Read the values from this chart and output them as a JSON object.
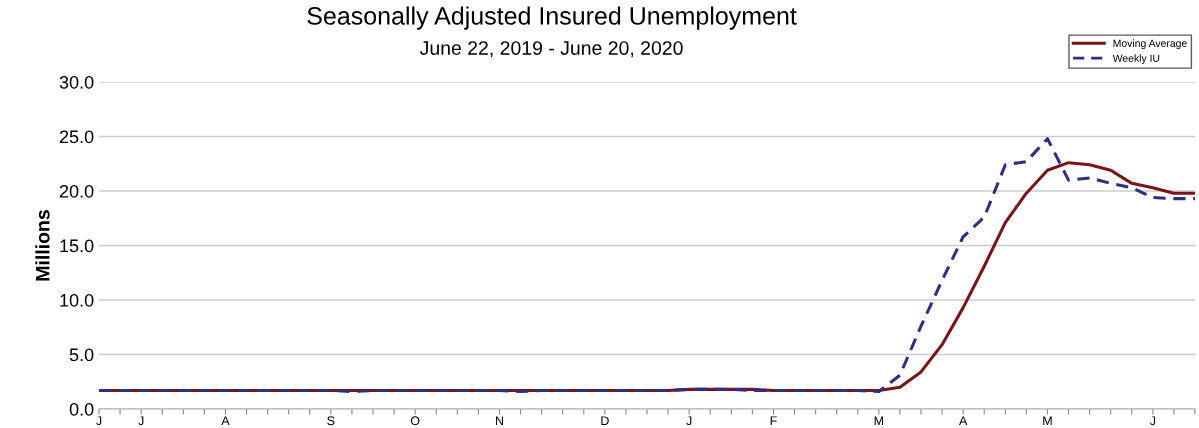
{
  "chart_data": {
    "type": "line",
    "title": "Seasonally Adjusted Insured Unemployment",
    "subtitle": "June 22, 2019 - June 20, 2020",
    "ylabel": "Millions",
    "categories": [
      "J",
      null,
      "J",
      null,
      null,
      null,
      "A",
      null,
      null,
      null,
      null,
      "S",
      null,
      null,
      null,
      "O",
      null,
      null,
      null,
      "N",
      null,
      null,
      null,
      null,
      "D",
      null,
      null,
      null,
      "J",
      null,
      null,
      null,
      "F",
      null,
      null,
      null,
      null,
      "M",
      null,
      null,
      null,
      "A",
      null,
      null,
      null,
      "M",
      null,
      null,
      null,
      null,
      "J",
      null,
      null
    ],
    "series": [
      {
        "name": "Moving Average",
        "color": "#7b1416",
        "line_style": "solid",
        "values": [
          1.7,
          1.7,
          1.7,
          1.7,
          1.7,
          1.7,
          1.7,
          1.7,
          1.7,
          1.7,
          1.7,
          1.7,
          1.7,
          1.7,
          1.7,
          1.7,
          1.7,
          1.7,
          1.7,
          1.7,
          1.7,
          1.7,
          1.7,
          1.7,
          1.7,
          1.7,
          1.7,
          1.7,
          1.8,
          1.8,
          1.8,
          1.8,
          1.7,
          1.7,
          1.7,
          1.7,
          1.7,
          1.7,
          2.0,
          3.4,
          5.9,
          9.3,
          13.1,
          17.1,
          19.8,
          21.9,
          22.6,
          22.4,
          21.9,
          20.7,
          20.3,
          19.8,
          19.8
        ]
      },
      {
        "name": "Weekly IU",
        "color": "#2b2f86",
        "line_style": "dashed",
        "values": [
          1.7,
          1.7,
          1.7,
          1.7,
          1.7,
          1.7,
          1.7,
          1.7,
          1.7,
          1.7,
          1.7,
          1.7,
          1.6,
          1.7,
          1.7,
          1.7,
          1.7,
          1.7,
          1.7,
          1.7,
          1.6,
          1.7,
          1.7,
          1.7,
          1.7,
          1.7,
          1.7,
          1.7,
          1.8,
          1.8,
          1.8,
          1.7,
          1.7,
          1.7,
          1.7,
          1.7,
          1.7,
          1.6,
          3.1,
          7.6,
          11.8,
          15.8,
          17.6,
          22.4,
          22.7,
          24.8,
          21.0,
          21.2,
          20.7,
          20.3,
          19.4,
          19.3,
          19.3
        ]
      }
    ],
    "ylim": [
      0,
      30
    ],
    "yticks": [
      {
        "value": 0,
        "label": "0.0"
      },
      {
        "value": 5,
        "label": "5.0"
      },
      {
        "value": 10,
        "label": "10.0"
      },
      {
        "value": 15,
        "label": "15.0"
      },
      {
        "value": 20,
        "label": "20.0"
      },
      {
        "value": 25,
        "label": "25.0"
      },
      {
        "value": 30,
        "label": "30.0"
      }
    ],
    "grid": "y",
    "legend": "top right"
  }
}
